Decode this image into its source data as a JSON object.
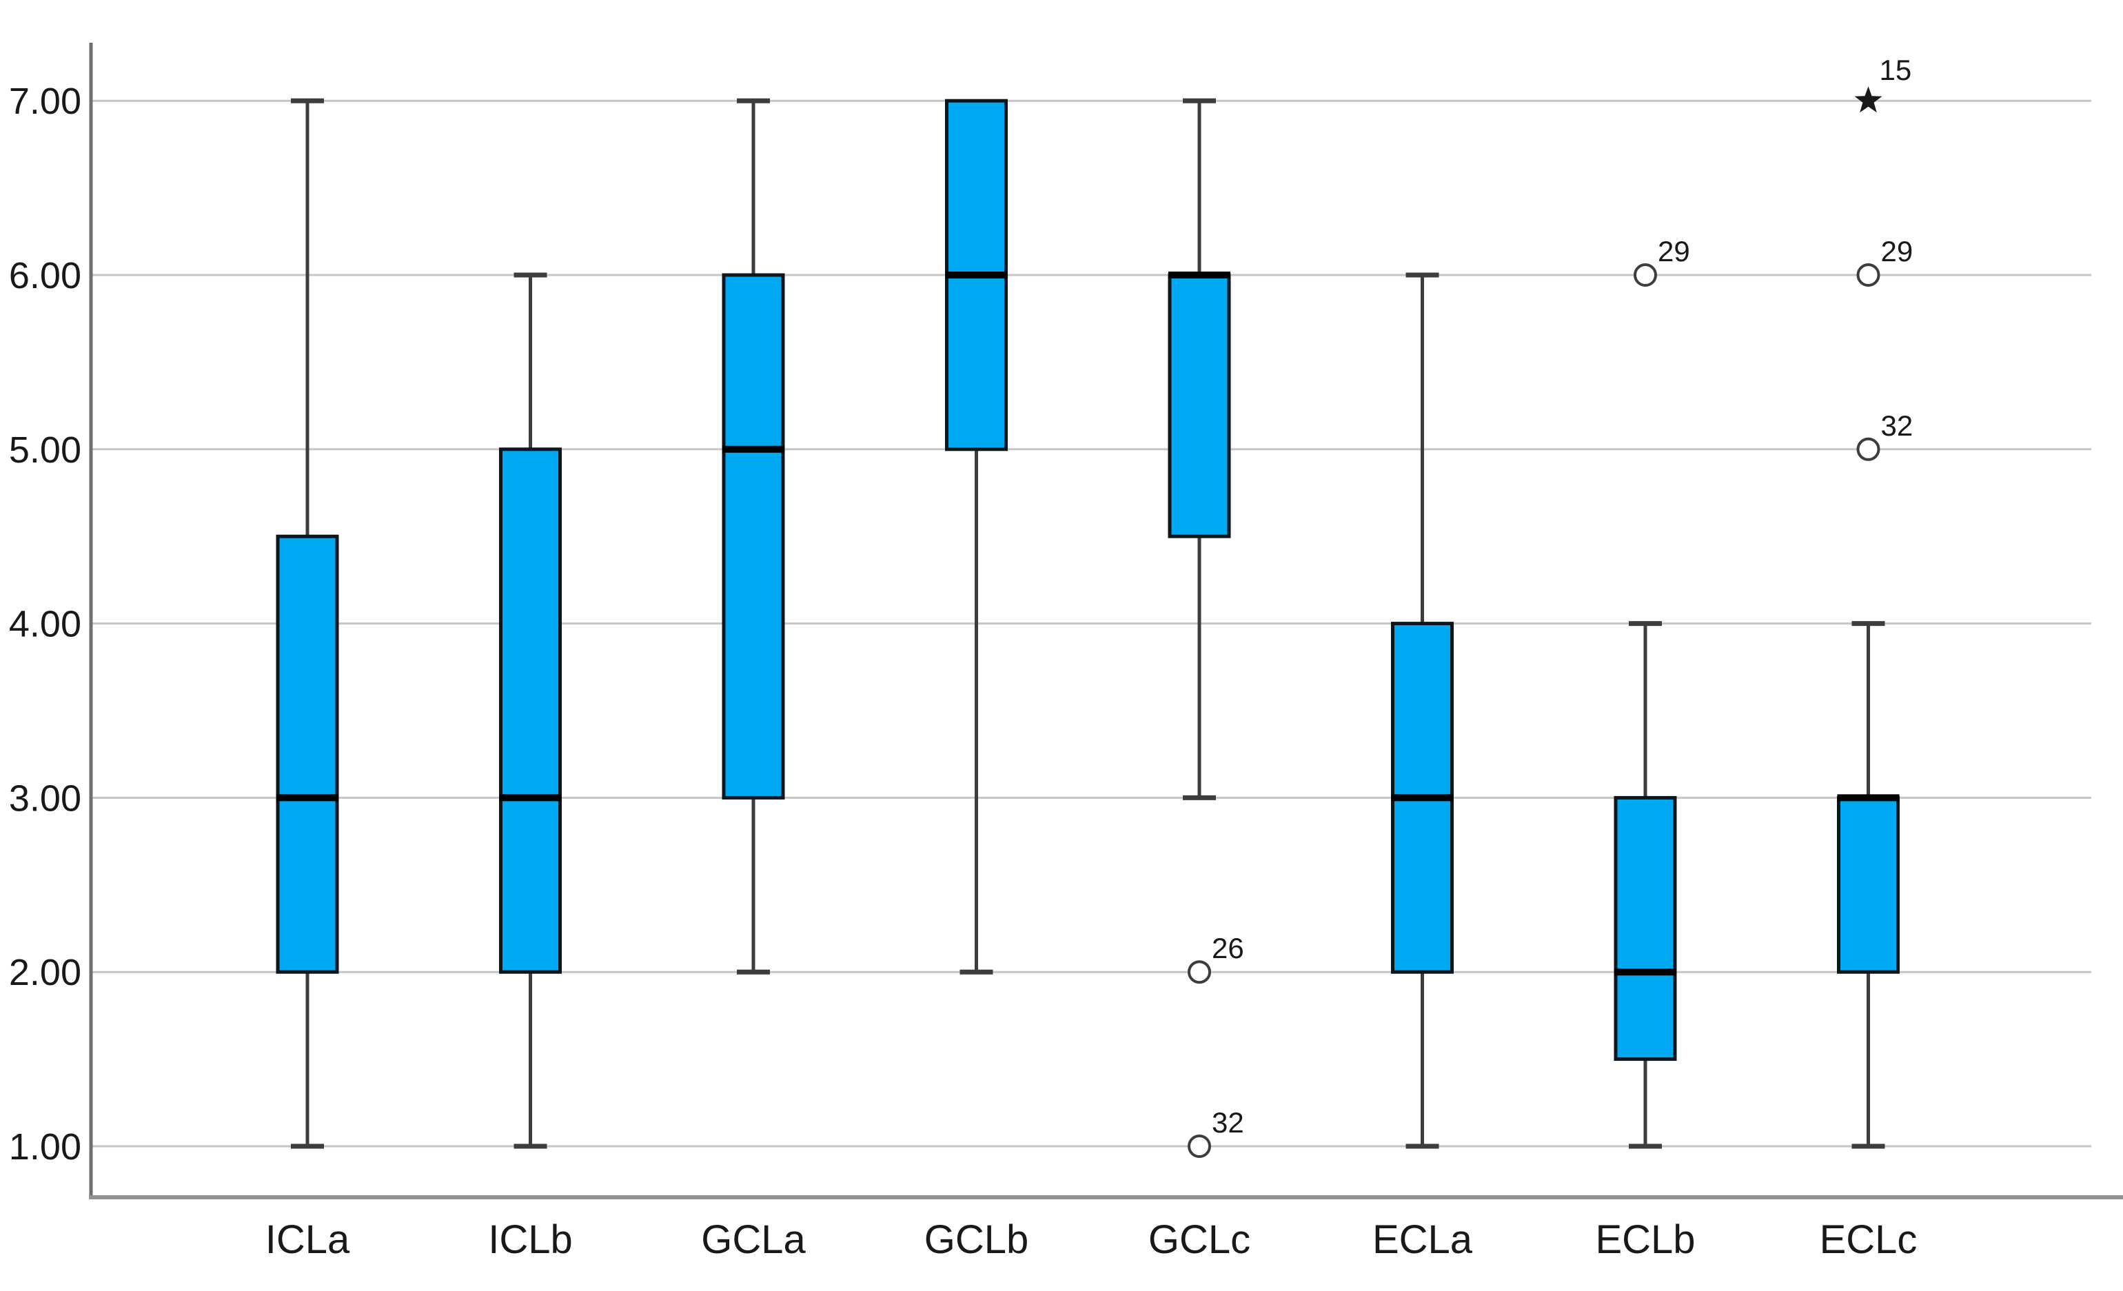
{
  "figure": {
    "background": "#ffffff"
  },
  "chart_data": {
    "type": "boxplot",
    "title": "",
    "xlabel": "",
    "ylabel": "",
    "ylim": [
      1,
      7
    ],
    "grid": true,
    "legend": false,
    "categories": [
      "ICLa",
      "ICLb",
      "GCLa",
      "GCLb",
      "GCLc",
      "ECLa",
      "ECLb",
      "ECLc"
    ],
    "yticks": [
      {
        "value": 7,
        "label": "7.00"
      },
      {
        "value": 6,
        "label": "6.00"
      },
      {
        "value": 5,
        "label": "5.00"
      },
      {
        "value": 4,
        "label": "4.00"
      },
      {
        "value": 3,
        "label": "3.00"
      },
      {
        "value": 2,
        "label": "2.00"
      },
      {
        "value": 1,
        "label": "1.00"
      }
    ],
    "boxes": [
      {
        "category": "ICLa",
        "min": 1,
        "q1": 2,
        "median": 3,
        "q3": 4.5,
        "max": 7,
        "outliers": []
      },
      {
        "category": "ICLb",
        "min": 1,
        "q1": 2,
        "median": 3,
        "q3": 5,
        "max": 6,
        "outliers": []
      },
      {
        "category": "GCLa",
        "min": 2,
        "q1": 3,
        "median": 5,
        "q3": 6,
        "max": 7,
        "outliers": []
      },
      {
        "category": "GCLb",
        "min": 2,
        "q1": 5,
        "median": 6,
        "q3": 7,
        "max": 7,
        "outliers": []
      },
      {
        "category": "GCLc",
        "min": 3,
        "q1": 4.5,
        "median": 6,
        "q3": 6,
        "max": 7,
        "outliers": [
          {
            "value": 2,
            "label": "26",
            "marker": "circle"
          },
          {
            "value": 1,
            "label": "32",
            "marker": "circle"
          }
        ]
      },
      {
        "category": "ECLa",
        "min": 1,
        "q1": 2,
        "median": 3,
        "q3": 4,
        "max": 6,
        "outliers": []
      },
      {
        "category": "ECLb",
        "min": 1,
        "q1": 1.5,
        "median": 2,
        "q3": 3,
        "max": 4,
        "outliers": [
          {
            "value": 6,
            "label": "29",
            "marker": "circle"
          }
        ]
      },
      {
        "category": "ECLc",
        "min": 1,
        "q1": 2,
        "median": 3,
        "q3": 3,
        "max": 4,
        "outliers": [
          {
            "value": 5,
            "label": "32",
            "marker": "circle"
          },
          {
            "value": 6,
            "label": "29",
            "marker": "circle"
          },
          {
            "value": 7,
            "label": "15",
            "marker": "star"
          }
        ]
      }
    ],
    "marker_legend": {
      "circle": "outlier",
      "star": "extreme-outlier"
    },
    "style": {
      "box_fill": "#00aaf2",
      "box_stroke": "#0c161c",
      "median_color": "#000000",
      "whisker_color": "#3d3d3d",
      "gridline_color": "#c6c6c6",
      "y_axis_color": "#6f6f6f",
      "x_axis_color": "#929292",
      "text_color": "#191919",
      "outlier_stroke": "#3d3d3d",
      "outlier_fill": "#ffffff",
      "star_fill": "#1a1a1a"
    }
  }
}
